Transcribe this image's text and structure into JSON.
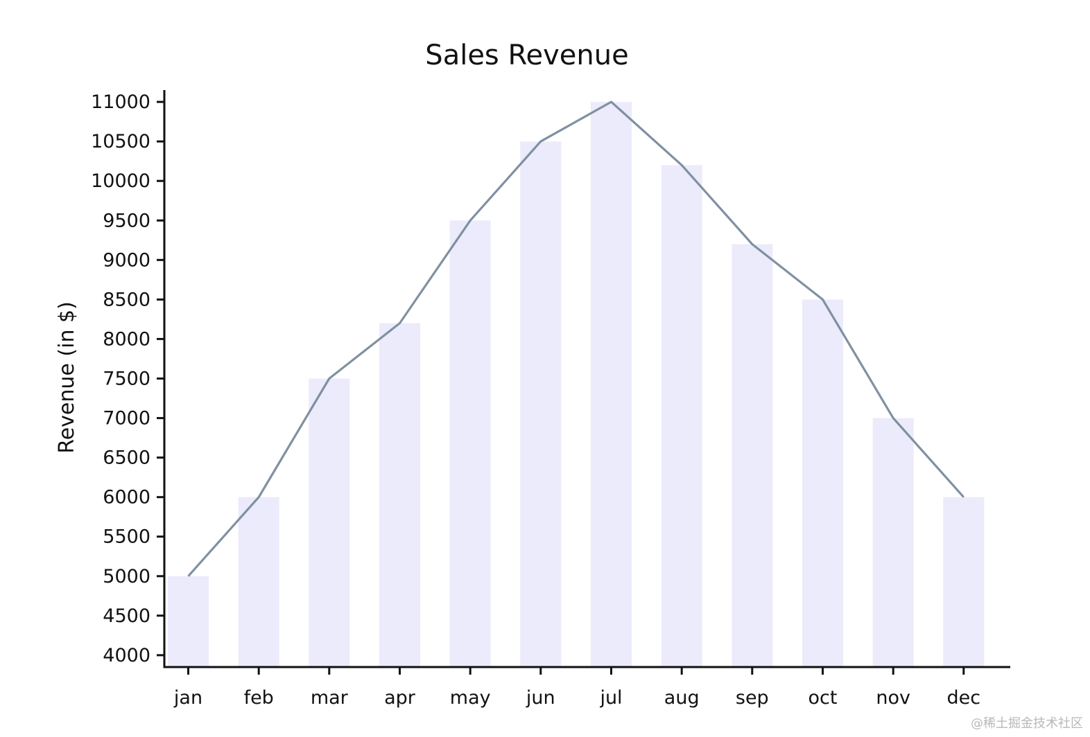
{
  "chart_data": {
    "type": "bar",
    "title": "Sales Revenue",
    "xlabel": "",
    "ylabel": "Revenue (in $)",
    "categories": [
      "jan",
      "feb",
      "mar",
      "apr",
      "may",
      "jun",
      "jul",
      "aug",
      "sep",
      "oct",
      "nov",
      "dec"
    ],
    "values": [
      5000,
      6000,
      7500,
      8200,
      9500,
      10500,
      11000,
      10200,
      9200,
      8500,
      7000,
      6000
    ],
    "line_overlay": true,
    "ylim": [
      3850,
      11150
    ],
    "yticks": [
      4000,
      4500,
      5000,
      5500,
      6000,
      6500,
      7000,
      7500,
      8000,
      8500,
      9000,
      9500,
      10000,
      10500,
      11000
    ],
    "grid": false,
    "legend": "none",
    "colors": {
      "bar": "#ebebfc",
      "line": "#8090a2",
      "axis": "#111111"
    }
  },
  "watermark": "@稀土掘金技术社区"
}
